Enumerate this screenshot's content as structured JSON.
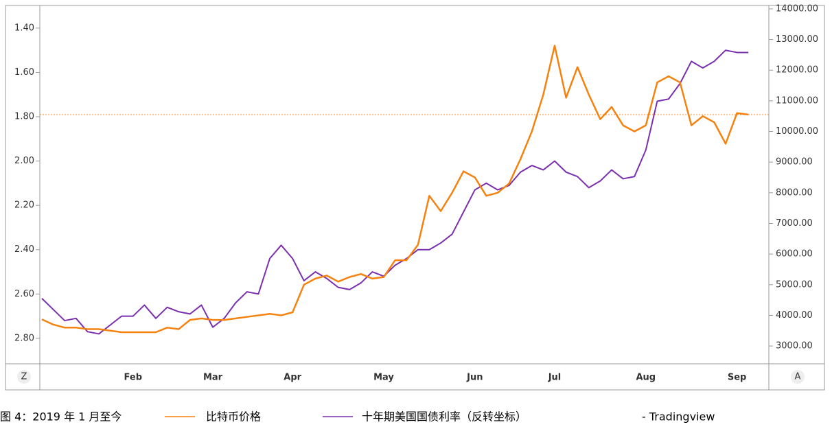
{
  "chart_data": {
    "type": "line",
    "categories": [
      null,
      null,
      null,
      null,
      null,
      null,
      null,
      null,
      "Feb",
      null,
      null,
      null,
      null,
      null,
      null,
      "Mar",
      null,
      null,
      null,
      null,
      null,
      null,
      "Apr",
      null,
      null,
      null,
      null,
      null,
      null,
      null,
      "May",
      null,
      null,
      null,
      null,
      null,
      null,
      null,
      "Jun",
      null,
      null,
      null,
      null,
      null,
      null,
      "Jul",
      null,
      null,
      null,
      null,
      null,
      null,
      null,
      "Aug",
      null,
      null,
      null,
      null,
      null,
      null,
      null,
      "Sep",
      null
    ],
    "series": [
      {
        "name": "比特币价格",
        "color": "#f5820f",
        "axis": "y2",
        "values": [
          3870,
          3700,
          3600,
          3600,
          3550,
          3550,
          3500,
          3450,
          3450,
          3450,
          3450,
          3600,
          3550,
          3850,
          3900,
          3850,
          3850,
          3900,
          3950,
          4000,
          4050,
          4000,
          4100,
          5000,
          5200,
          5300,
          5100,
          5250,
          5350,
          5200,
          5250,
          5800,
          5800,
          6300,
          7900,
          7400,
          8000,
          8700,
          8500,
          7900,
          8000,
          8300,
          9100,
          10000,
          11200,
          12800,
          11100,
          12100,
          11200,
          10400,
          10800,
          10200,
          10000,
          10200,
          11600,
          11800,
          11600,
          10200,
          10500,
          10300,
          9600,
          10600,
          10550
        ]
      },
      {
        "name": "十年期美国国债利率（反转坐标）",
        "color": "#7a2fae",
        "axis": "y",
        "values": [
          2.62,
          2.67,
          2.72,
          2.71,
          2.77,
          2.78,
          2.74,
          2.7,
          2.7,
          2.65,
          2.71,
          2.66,
          2.68,
          2.69,
          2.65,
          2.75,
          2.71,
          2.64,
          2.59,
          2.6,
          2.44,
          2.38,
          2.44,
          2.54,
          2.5,
          2.53,
          2.57,
          2.58,
          2.55,
          2.5,
          2.52,
          2.47,
          2.44,
          2.4,
          2.4,
          2.37,
          2.33,
          2.23,
          2.13,
          2.1,
          2.13,
          2.11,
          2.05,
          2.02,
          2.04,
          2.0,
          2.05,
          2.07,
          2.12,
          2.09,
          2.04,
          2.08,
          2.07,
          1.95,
          1.73,
          1.72,
          1.65,
          1.55,
          1.58,
          1.55,
          1.5,
          1.51,
          1.51
        ]
      }
    ],
    "ylim": [
      2.915,
      1.298
    ],
    "yticks": [
      {
        "value": 1.4,
        "label": "1.40"
      },
      {
        "value": 1.6,
        "label": "1.60"
      },
      {
        "value": 1.8,
        "label": "1.80"
      },
      {
        "value": 2.0,
        "label": "2.00"
      },
      {
        "value": 2.2,
        "label": "2.20"
      },
      {
        "value": 2.4,
        "label": "2.40"
      },
      {
        "value": 2.6,
        "label": "2.60"
      },
      {
        "value": 2.8,
        "label": "2.80"
      }
    ],
    "y2lim": [
      2420,
      14110
    ],
    "y2ticks": [
      {
        "value": 3000,
        "label": "3000.00"
      },
      {
        "value": 4000,
        "label": "4000.00"
      },
      {
        "value": 5000,
        "label": "5000.00"
      },
      {
        "value": 6000,
        "label": "6000.00"
      },
      {
        "value": 7000,
        "label": "7000.00"
      },
      {
        "value": 8000,
        "label": "8000.00"
      },
      {
        "value": 9000,
        "label": "9000.00"
      },
      {
        "value": 10000,
        "label": "10000.00"
      },
      {
        "value": 11000,
        "label": "11000.00"
      },
      {
        "value": 12000,
        "label": "12000.00"
      },
      {
        "value": 13000,
        "label": "13000.00"
      },
      {
        "value": 14000,
        "label": "14000.00"
      }
    ],
    "price_line": 10550,
    "grid": false
  },
  "axis_buttons": [
    "Z",
    "A"
  ],
  "caption": {
    "prefix": "图 4：2019 年 1 月至今",
    "source": "- Tradingview"
  }
}
